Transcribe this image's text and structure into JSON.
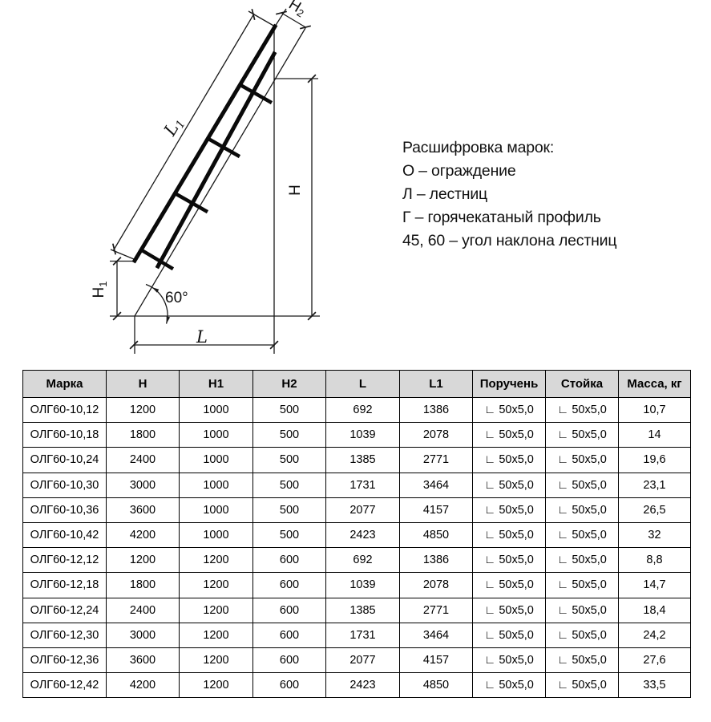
{
  "drawing": {
    "angle_label": "60°",
    "dim_labels": {
      "l1_main": "L",
      "l1_sub": "1",
      "h2_main": "Н",
      "h2_sub": "2",
      "h_main": "Н",
      "h1_main": "Н",
      "h1_sub": "1",
      "l_main": "L"
    }
  },
  "legend": {
    "lines": [
      "Расшифровка марок:",
      "О – ограждение",
      "Л – лестниц",
      "Г – горячекатаный профиль",
      "45, 60 – угол наклона лестниц"
    ]
  },
  "table": {
    "headers": [
      "Марка",
      "Н",
      "Н1",
      "Н2",
      "L",
      "L1",
      "Поручень",
      "Стойка",
      "Масса, кг"
    ],
    "rows": [
      [
        "ОЛГ60-10,12",
        "1200",
        "1000",
        "500",
        "692",
        "1386",
        "∟ 50x5,0",
        "∟ 50x5,0",
        "10,7"
      ],
      [
        "ОЛГ60-10,18",
        "1800",
        "1000",
        "500",
        "1039",
        "2078",
        "∟ 50x5,0",
        "∟ 50x5,0",
        "14"
      ],
      [
        "ОЛГ60-10,24",
        "2400",
        "1000",
        "500",
        "1385",
        "2771",
        "∟ 50x5,0",
        "∟ 50x5,0",
        "19,6"
      ],
      [
        "ОЛГ60-10,30",
        "3000",
        "1000",
        "500",
        "1731",
        "3464",
        "∟ 50x5,0",
        "∟ 50x5,0",
        "23,1"
      ],
      [
        "ОЛГ60-10,36",
        "3600",
        "1000",
        "500",
        "2077",
        "4157",
        "∟ 50x5,0",
        "∟ 50x5,0",
        "26,5"
      ],
      [
        "ОЛГ60-10,42",
        "4200",
        "1000",
        "500",
        "2423",
        "4850",
        "∟ 50x5,0",
        "∟ 50x5,0",
        "32"
      ],
      [
        "ОЛГ60-12,12",
        "1200",
        "1200",
        "600",
        "692",
        "1386",
        "∟ 50x5,0",
        "∟ 50x5,0",
        "8,8"
      ],
      [
        "ОЛГ60-12,18",
        "1800",
        "1200",
        "600",
        "1039",
        "2078",
        "∟ 50x5,0",
        "∟ 50x5,0",
        "14,7"
      ],
      [
        "ОЛГ60-12,24",
        "2400",
        "1200",
        "600",
        "1385",
        "2771",
        "∟ 50x5,0",
        "∟ 50x5,0",
        "18,4"
      ],
      [
        "ОЛГ60-12,30",
        "3000",
        "1200",
        "600",
        "1731",
        "3464",
        "∟ 50x5,0",
        "∟ 50x5,0",
        "24,2"
      ],
      [
        "ОЛГ60-12,36",
        "3600",
        "1200",
        "600",
        "2077",
        "4157",
        "∟ 50x5,0",
        "∟ 50x5,0",
        "27,6"
      ],
      [
        "ОЛГ60-12,42",
        "4200",
        "1200",
        "600",
        "2423",
        "4850",
        "∟ 50x5,0",
        "∟ 50x5,0",
        "33,5"
      ]
    ]
  },
  "colors": {
    "table_header_bg": "#d8d8d8",
    "line_color": "#000000"
  }
}
